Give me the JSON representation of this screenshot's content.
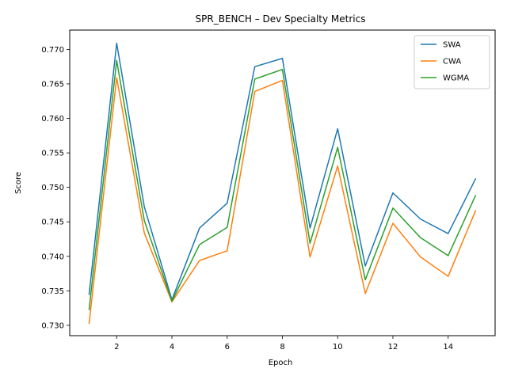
{
  "chart_data": {
    "type": "line",
    "title": "SPR_BENCH – Dev Specialty Metrics",
    "xlabel": "Epoch",
    "ylabel": "Score",
    "x": [
      1,
      2,
      3,
      4,
      5,
      6,
      7,
      8,
      9,
      10,
      11,
      12,
      13,
      14,
      15
    ],
    "xlim": [
      0.3,
      15.7
    ],
    "ylim": [
      0.7285,
      0.7728
    ],
    "xticks": [
      2,
      4,
      6,
      8,
      10,
      12,
      14
    ],
    "xtick_labels": [
      "2",
      "4",
      "6",
      "8",
      "10",
      "12",
      "14"
    ],
    "yticks": [
      0.73,
      0.735,
      0.74,
      0.745,
      0.75,
      0.755,
      0.76,
      0.765,
      0.77
    ],
    "ytick_labels": [
      "0.730",
      "0.735",
      "0.740",
      "0.745",
      "0.750",
      "0.755",
      "0.760",
      "0.765",
      "0.770"
    ],
    "grid": false,
    "legend_position": "top-right",
    "series": [
      {
        "name": "SWA",
        "color": "#1f77b4",
        "values": [
          0.7344,
          0.7709,
          0.7472,
          0.7337,
          0.7441,
          0.7477,
          0.7675,
          0.7687,
          0.7441,
          0.7585,
          0.7386,
          0.7492,
          0.7454,
          0.7433,
          0.7513
        ]
      },
      {
        "name": "CWA",
        "color": "#ff7f0e",
        "values": [
          0.7302,
          0.7659,
          0.7434,
          0.7334,
          0.7394,
          0.7408,
          0.7639,
          0.7655,
          0.7399,
          0.7531,
          0.7346,
          0.7448,
          0.7399,
          0.7371,
          0.7467
        ]
      },
      {
        "name": "WGMA",
        "color": "#2ca02c",
        "values": [
          0.7322,
          0.7684,
          0.7452,
          0.7335,
          0.7417,
          0.7442,
          0.7657,
          0.7671,
          0.7419,
          0.7558,
          0.7366,
          0.747,
          0.7427,
          0.7401,
          0.7489
        ]
      }
    ]
  }
}
